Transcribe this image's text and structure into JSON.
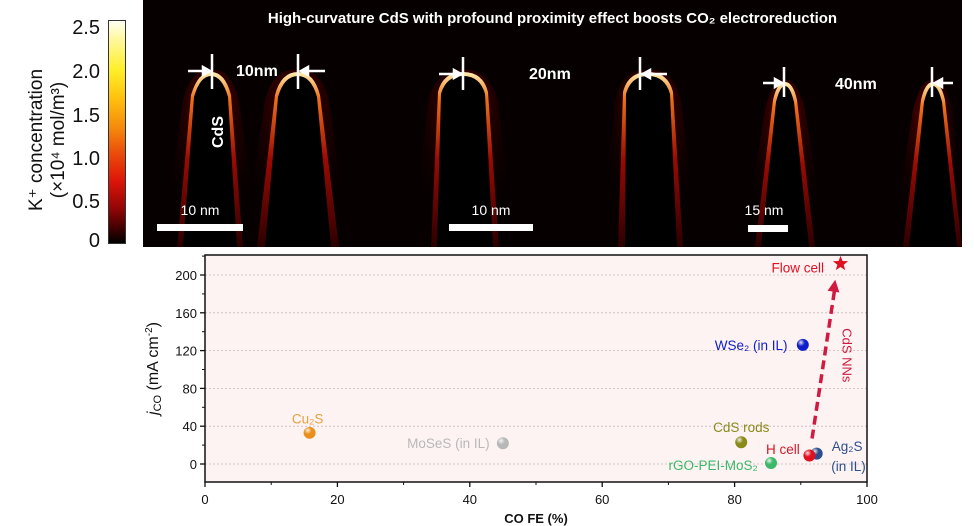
{
  "colorbar": {
    "label_line1": "K⁺ concentration",
    "label_line2": "(×10⁴ mol/m³)",
    "ticks": [
      "2.5",
      "2.0",
      "1.5",
      "1.0",
      "0.5",
      "0"
    ],
    "range": [
      0,
      2.5
    ],
    "colormap": [
      "#000000",
      "#8e0505",
      "#dd1508",
      "#f58a0c",
      "#ffef2a",
      "#fffff4"
    ]
  },
  "panel": {
    "title": "High-curvature CdS with profound proximity effect boosts CO₂ electroreduction",
    "material_label": "CdS",
    "width_labels": [
      "10nm",
      "20nm",
      "40nm"
    ],
    "scale_bars": [
      "10 nm",
      "10 nm",
      "15 nm"
    ]
  },
  "chart_data": {
    "type": "scatter",
    "title": "",
    "xlabel": "CO FE (%)",
    "ylabel": "jCO (mA cm⁻²)",
    "ylabel_main": "j",
    "ylabel_sub": "CO",
    "ylabel_rest": " (mA cm",
    "ylabel_sup": "-2",
    "ylabel_end": ")",
    "xlim": [
      0,
      100
    ],
    "ylim": [
      -10,
      220
    ],
    "xticks": [
      0,
      20,
      40,
      60,
      80,
      100
    ],
    "yticks": [
      0,
      40,
      80,
      120,
      160,
      200
    ],
    "grid": true,
    "background": "#fdf3f3",
    "points": [
      {
        "name": "Cu₂S",
        "x": 15.8,
        "y": 33,
        "color": "#e8901a",
        "marker": "sphere"
      },
      {
        "name": "MoSeS (in IL)",
        "x": 45,
        "y": 22,
        "color": "#b8b8b8",
        "marker": "sphere"
      },
      {
        "name": "CdS rods",
        "x": 81,
        "y": 23,
        "color": "#8a8a1a",
        "marker": "sphere"
      },
      {
        "name": "rGO-PEI-MoS₂",
        "x": 85.5,
        "y": 1,
        "color": "#3cb86a",
        "marker": "sphere"
      },
      {
        "name": "Ag₂S (in IL)",
        "x": 92.4,
        "y": 11,
        "color": "#2c4f8c",
        "marker": "sphere"
      },
      {
        "name": "H cell",
        "x": 91.3,
        "y": 9,
        "color": "#e01020",
        "marker": "sphere"
      },
      {
        "name": "WSe₂ (in IL)",
        "x": 90.3,
        "y": 126,
        "color": "#1020c8",
        "marker": "sphere"
      },
      {
        "name": "Flow cell",
        "x": 96,
        "y": 212,
        "color": "#e01020",
        "marker": "star"
      }
    ],
    "labels": [
      {
        "text": "Cu₂S",
        "x": 15.5,
        "y": 48,
        "color": "#e8a040",
        "anchor": "middle"
      },
      {
        "text": "MoSeS (in IL)",
        "x": 43,
        "y": 22,
        "color": "#b8b8b8",
        "anchor": "end"
      },
      {
        "text": "CdS rods",
        "x": 81,
        "y": 39,
        "color": "#8a8a1a",
        "anchor": "middle"
      },
      {
        "text": "rGO-PEI-MoS₂",
        "x": 83.5,
        "y": -1,
        "color": "#3cb86a",
        "anchor": "end"
      },
      {
        "text": "H cell",
        "x": 87.3,
        "y": 16,
        "color": "#d01a2a",
        "anchor": "middle"
      },
      {
        "text": "Ag₂S",
        "x": 97,
        "y": 19,
        "color": "#2c4f8c",
        "anchor": "middle"
      },
      {
        "text": "(in IL)",
        "x": 97.2,
        "y": -2,
        "color": "#2c4f8c",
        "anchor": "middle"
      },
      {
        "text": "WSe₂ (in IL)",
        "x": 88,
        "y": 126,
        "color": "#1020c8",
        "anchor": "end"
      },
      {
        "text": "Flow cell",
        "x": 93.5,
        "y": 208,
        "color": "#e01020",
        "anchor": "end"
      }
    ],
    "annotation": {
      "text": "CdS NNs",
      "from": [
        91.7,
        27
      ],
      "to": [
        95.2,
        195
      ],
      "color": "#d01a40"
    }
  }
}
